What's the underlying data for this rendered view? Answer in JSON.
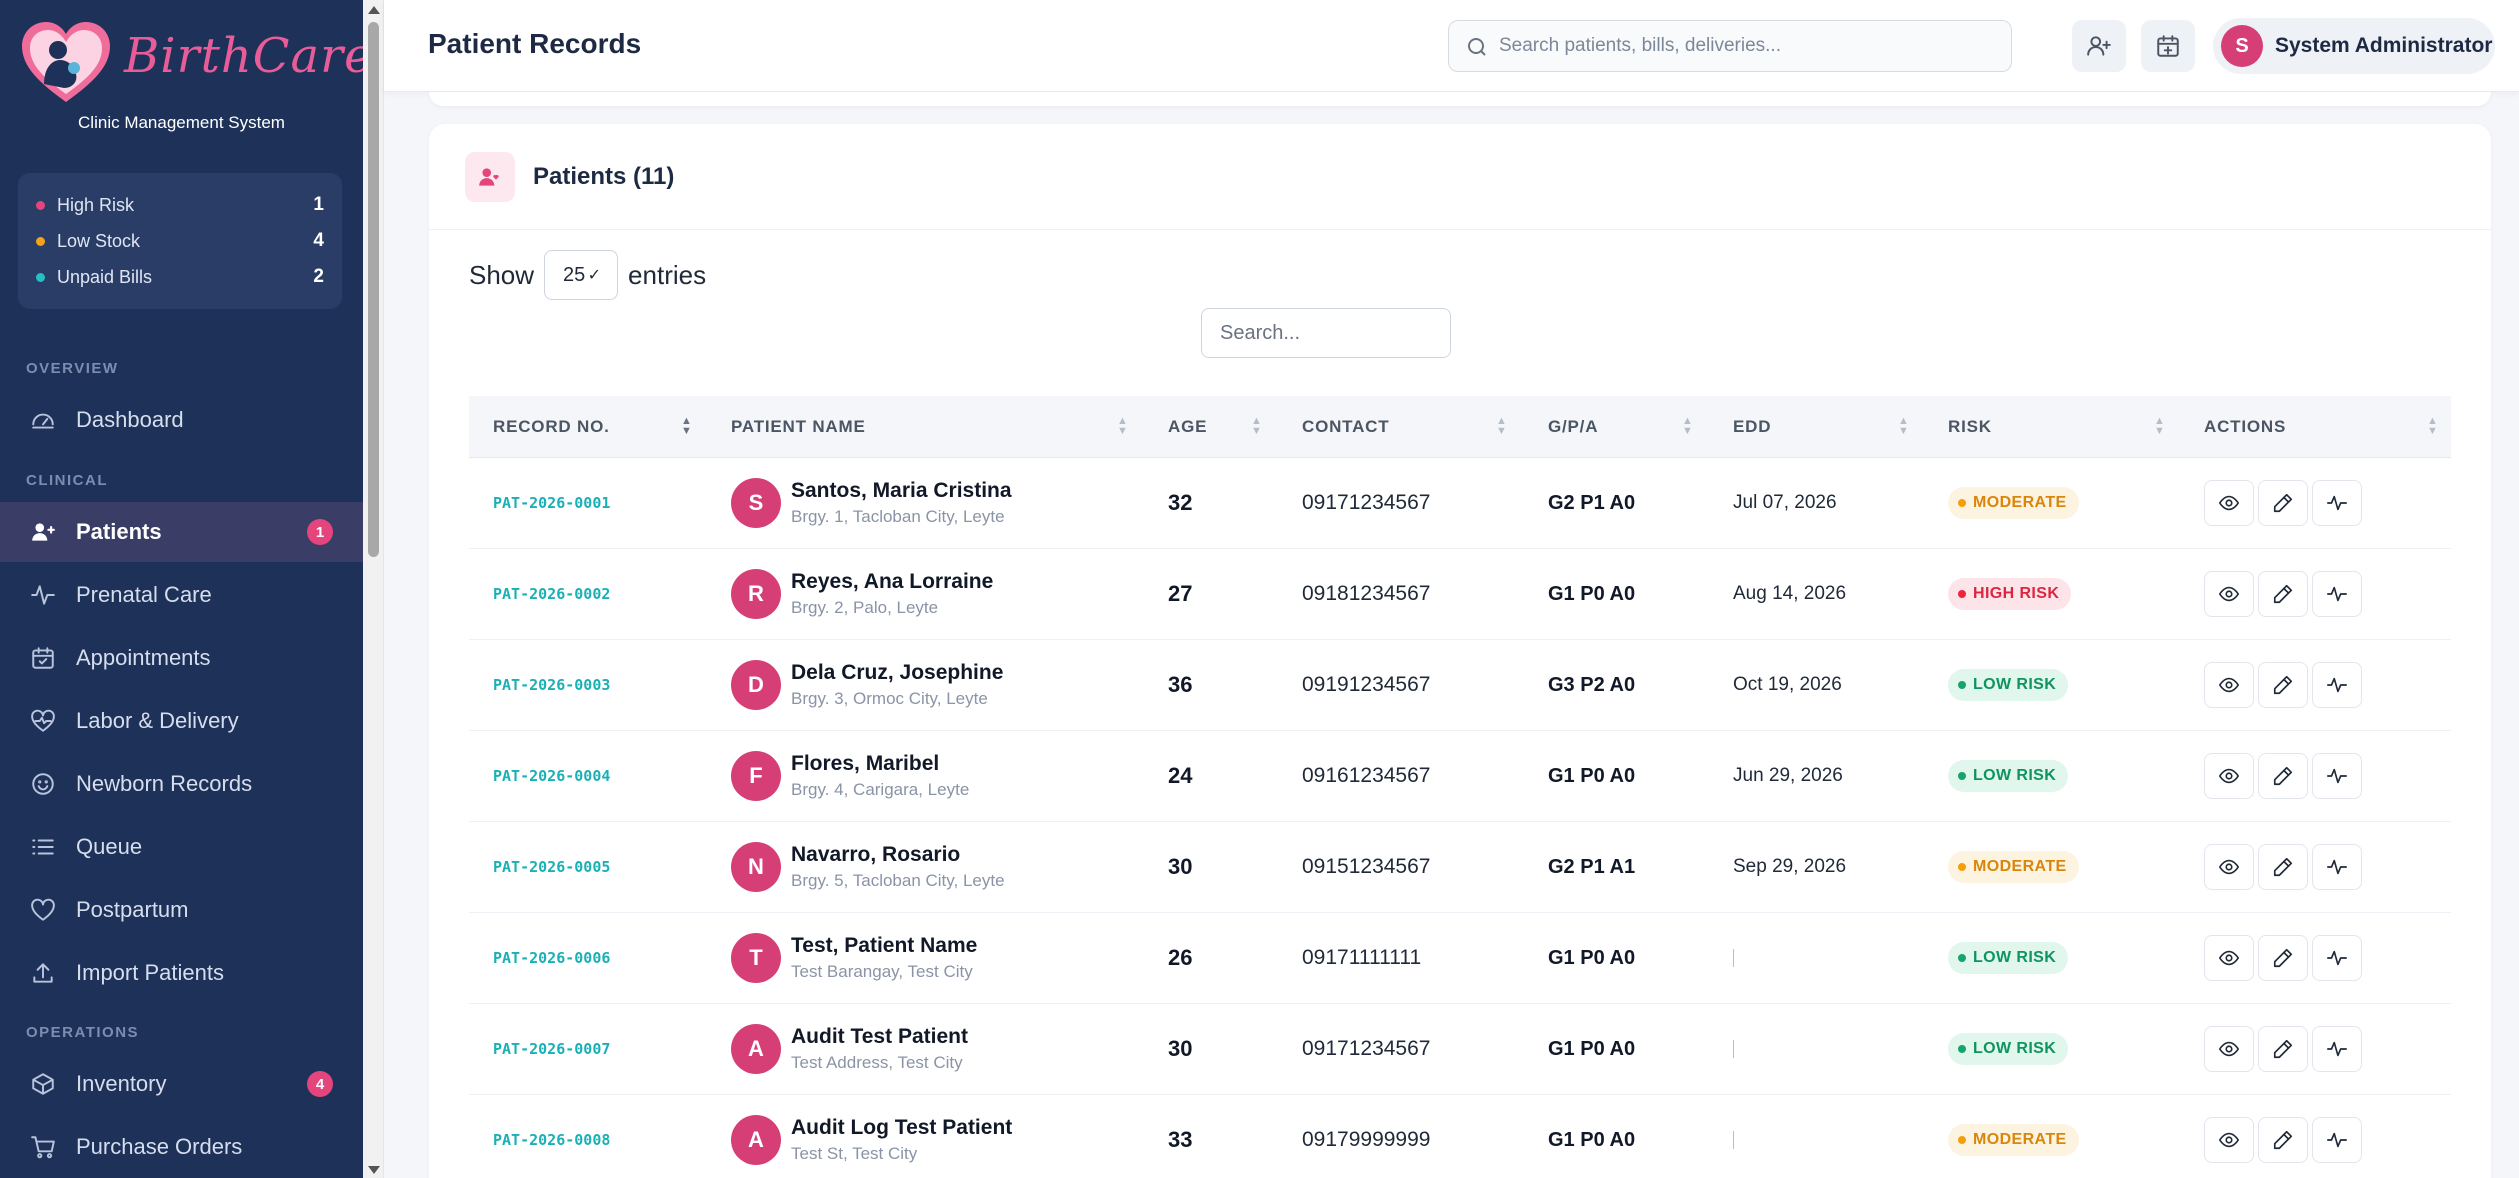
{
  "brand": {
    "name": "BirthCare",
    "subtitle": "Clinic Management System"
  },
  "alerts": [
    {
      "label": "High Risk",
      "count": "1",
      "color": "#e5457d"
    },
    {
      "label": "Low Stock",
      "count": "4",
      "color": "#f5a21b"
    },
    {
      "label": "Unpaid Bills",
      "count": "2",
      "color": "#23c1c4"
    }
  ],
  "nav": {
    "overview_label": "OVERVIEW",
    "clinical_label": "CLINICAL",
    "operations_label": "OPERATIONS",
    "items": [
      {
        "label": "Dashboard",
        "icon": "gauge-icon"
      },
      {
        "label": "Patients",
        "icon": "users-icon",
        "badge": "1",
        "active": true
      },
      {
        "label": "Prenatal Care",
        "icon": "pulse-icon"
      },
      {
        "label": "Appointments",
        "icon": "calendar-check-icon"
      },
      {
        "label": "Labor & Delivery",
        "icon": "heart-pulse-icon"
      },
      {
        "label": "Newborn Records",
        "icon": "smile-icon"
      },
      {
        "label": "Queue",
        "icon": "list-icon"
      },
      {
        "label": "Postpartum",
        "icon": "heart-icon"
      },
      {
        "label": "Import Patients",
        "icon": "upload-icon"
      },
      {
        "label": "Inventory",
        "icon": "box-icon",
        "badge": "4"
      },
      {
        "label": "Purchase Orders",
        "icon": "cart-icon"
      }
    ]
  },
  "header": {
    "title": "Patient Records",
    "search_placeholder": "Search patients, bills, deliveries...",
    "user_initial": "S",
    "user_name": "System Administrator"
  },
  "patients_card": {
    "title": "Patients (11)",
    "show_label": "Show",
    "entries_value": "25",
    "entries_label": "entries",
    "search_placeholder": "Search...",
    "columns": [
      "RECORD NO.",
      "PATIENT NAME",
      "AGE",
      "CONTACT",
      "G/P/A",
      "EDD",
      "RISK",
      "ACTIONS"
    ],
    "rows": [
      {
        "record": "PAT-2026-0001",
        "initial": "S",
        "name": "Santos, Maria Cristina",
        "address": "Brgy. 1, Tacloban City, Leyte",
        "age": "32",
        "contact": "09171234567",
        "gpa": "G2 P1 A0",
        "edd": "Jul 07, 2026",
        "risk": "MODERATE",
        "risk_level": "moderate"
      },
      {
        "record": "PAT-2026-0002",
        "initial": "R",
        "name": "Reyes, Ana Lorraine",
        "address": "Brgy. 2, Palo, Leyte",
        "age": "27",
        "contact": "09181234567",
        "gpa": "G1 P0 A0",
        "edd": "Aug 14, 2026",
        "risk": "HIGH RISK",
        "risk_level": "high"
      },
      {
        "record": "PAT-2026-0003",
        "initial": "D",
        "name": "Dela Cruz, Josephine",
        "address": "Brgy. 3, Ormoc City, Leyte",
        "age": "36",
        "contact": "09191234567",
        "gpa": "G3 P2 A0",
        "edd": "Oct 19, 2026",
        "risk": "LOW RISK",
        "risk_level": "low"
      },
      {
        "record": "PAT-2026-0004",
        "initial": "F",
        "name": "Flores, Maribel",
        "address": "Brgy. 4, Carigara, Leyte",
        "age": "24",
        "contact": "09161234567",
        "gpa": "G1 P0 A0",
        "edd": "Jun 29, 2026",
        "risk": "LOW RISK",
        "risk_level": "low"
      },
      {
        "record": "PAT-2026-0005",
        "initial": "N",
        "name": "Navarro, Rosario",
        "address": "Brgy. 5, Tacloban City, Leyte",
        "age": "30",
        "contact": "09151234567",
        "gpa": "G2 P1 A1",
        "edd": "Sep 29, 2026",
        "risk": "MODERATE",
        "risk_level": "moderate"
      },
      {
        "record": "PAT-2026-0006",
        "initial": "T",
        "name": "Test, Patient Name",
        "address": "Test Barangay, Test City",
        "age": "26",
        "contact": "09171111111",
        "gpa": "G1 P0 A0",
        "edd": "",
        "risk": "LOW RISK",
        "risk_level": "low"
      },
      {
        "record": "PAT-2026-0007",
        "initial": "A",
        "name": "Audit Test Patient",
        "address": "Test Address, Test City",
        "age": "30",
        "contact": "09171234567",
        "gpa": "G1 P0 A0",
        "edd": "",
        "risk": "LOW RISK",
        "risk_level": "low"
      },
      {
        "record": "PAT-2026-0008",
        "initial": "A",
        "name": "Audit Log Test Patient",
        "address": "Test St, Test City",
        "age": "33",
        "contact": "09179999999",
        "gpa": "G1 P0 A0",
        "edd": "",
        "risk": "MODERATE",
        "risk_level": "moderate"
      }
    ]
  }
}
